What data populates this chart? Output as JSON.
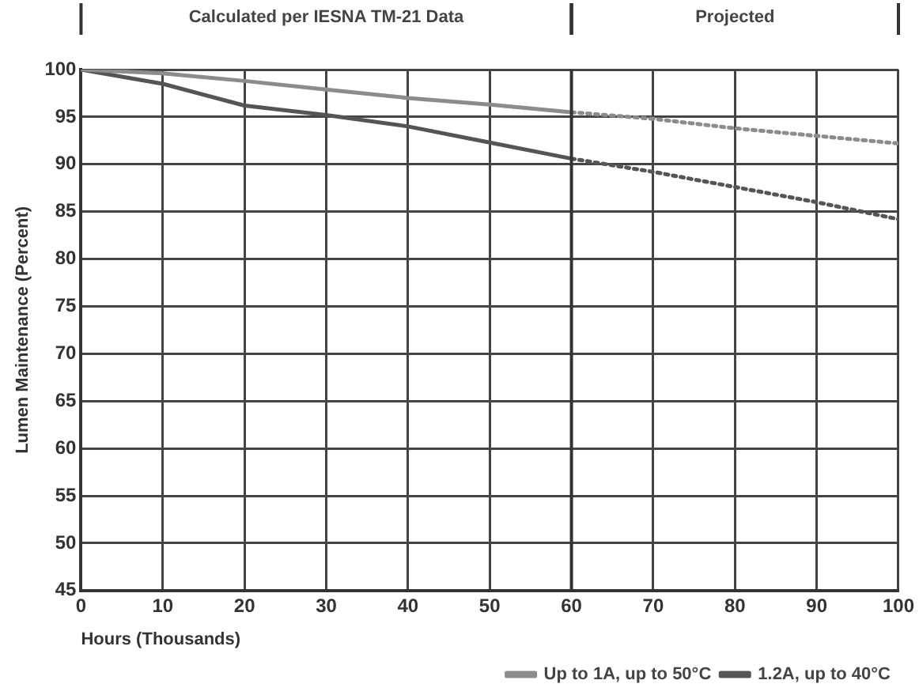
{
  "chart_data": {
    "type": "line",
    "xlabel": "Hours (Thousands)",
    "ylabel": "Lumen Maintenance (Percent)",
    "series": [
      {
        "name": "Up to 1A, up to 50°C",
        "color": "#8c8c8c",
        "x": [
          0,
          10,
          20,
          30,
          40,
          50,
          60
        ],
        "values": [
          100,
          99.6,
          98.8,
          97.9,
          97,
          96.3,
          95.5
        ],
        "line_style": "solid"
      },
      {
        "name": "1.2A, up to 40°C",
        "color": "#555555",
        "x": [
          0,
          10,
          20,
          30,
          40,
          50,
          60
        ],
        "values": [
          100,
          98.5,
          96.2,
          95.2,
          94,
          92.3,
          90.6
        ],
        "line_style": "solid"
      },
      {
        "color": "#8c8c8c",
        "x": [
          60,
          70,
          80,
          90,
          100
        ],
        "values": [
          95.5,
          94.8,
          93.8,
          93,
          92.2
        ],
        "line_style": "dotted"
      },
      {
        "color": "#555555",
        "x": [
          60,
          70,
          80,
          90,
          100
        ],
        "values": [
          90.6,
          89.2,
          87.6,
          86,
          84.2
        ],
        "line_style": "dotted"
      }
    ],
    "xlim": [
      0,
      100
    ],
    "xticks": [
      0,
      10,
      20,
      30,
      40,
      50,
      60,
      70,
      80,
      90,
      100
    ],
    "ylim": [
      45,
      100
    ],
    "yticks": [
      45,
      50,
      55,
      60,
      65,
      70,
      75,
      80,
      85,
      90,
      95,
      100
    ],
    "annotations": [
      "Calculated per IESNA TM-21 Data",
      "Projected"
    ],
    "ref_lines": [
      {
        "axis": "x",
        "value": 60,
        "color": "#333333"
      }
    ],
    "grid": true,
    "legend": "bottom right",
    "marker": "none"
  }
}
